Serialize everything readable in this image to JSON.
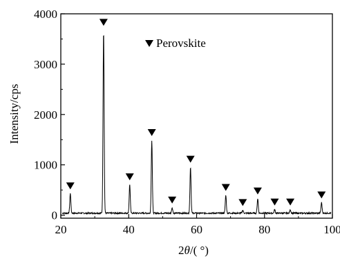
{
  "chart_data": {
    "type": "line",
    "title": "",
    "xlabel": "2θ/(°)",
    "xlabel_parts": {
      "prefix": "2",
      "italic": "θ",
      "suffix": "/( °)"
    },
    "ylabel": "Intensity/cps",
    "xlim": [
      20,
      100
    ],
    "ylim": [
      -60,
      4000
    ],
    "x_ticks": [
      20,
      40,
      60,
      80,
      100
    ],
    "y_ticks": [
      0,
      1000,
      2000,
      3000,
      4000
    ],
    "grid": false,
    "legend": {
      "position": "top-center",
      "marker": "down-triangle",
      "label": "Perovskite"
    },
    "peaks": [
      {
        "x": 22.8,
        "y": 430
      },
      {
        "x": 32.6,
        "y": 3680
      },
      {
        "x": 40.3,
        "y": 610
      },
      {
        "x": 46.8,
        "y": 1490
      },
      {
        "x": 52.8,
        "y": 150
      },
      {
        "x": 58.2,
        "y": 960
      },
      {
        "x": 68.6,
        "y": 400
      },
      {
        "x": 73.6,
        "y": 100
      },
      {
        "x": 78.0,
        "y": 330
      },
      {
        "x": 83.0,
        "y": 110
      },
      {
        "x": 87.6,
        "y": 110
      },
      {
        "x": 96.8,
        "y": 250
      }
    ],
    "baseline": 40,
    "line_color": "#000000",
    "marker_color": "#000000"
  }
}
